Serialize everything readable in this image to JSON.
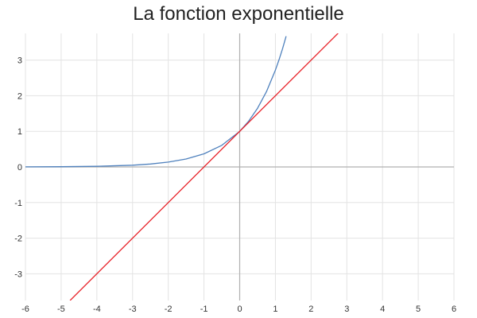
{
  "chart_data": {
    "type": "line",
    "title": "La fonction exponentielle",
    "xlim": [
      -6,
      6
    ],
    "ylim": [
      -3.75,
      3.75
    ],
    "x_ticks": [
      -6,
      -5,
      -4,
      -3,
      -2,
      -1,
      0,
      1,
      2,
      3,
      4,
      5,
      6
    ],
    "y_ticks": [
      3,
      2,
      1,
      0,
      -1,
      -2,
      -3
    ],
    "x_tick_labels": [
      "-6",
      "-5",
      "-4",
      "-3",
      "-2",
      "-1",
      "0",
      "1",
      "2",
      "3",
      "4",
      "5",
      "6"
    ],
    "y_tick_labels": [
      "3",
      "2",
      "1",
      "0",
      "-1",
      "-2",
      "-3"
    ],
    "grid": true,
    "series": [
      {
        "color": "#4f81bd",
        "x": [
          -6,
          -5,
          -4,
          -3,
          -2.5,
          -2,
          -1.5,
          -1,
          -0.5,
          0,
          0.25,
          0.5,
          0.75,
          1,
          1.1,
          1.2,
          1.3
        ],
        "y": [
          0.0025,
          0.0067,
          0.0183,
          0.0498,
          0.0821,
          0.1353,
          0.2231,
          0.3679,
          0.6065,
          1,
          1.284,
          1.6487,
          2.117,
          2.7183,
          3.0042,
          3.3201,
          3.6693
        ]
      },
      {
        "color": "#e8242b",
        "x": [
          -4.75,
          2.8
        ],
        "y": [
          -3.75,
          3.8
        ]
      }
    ]
  }
}
